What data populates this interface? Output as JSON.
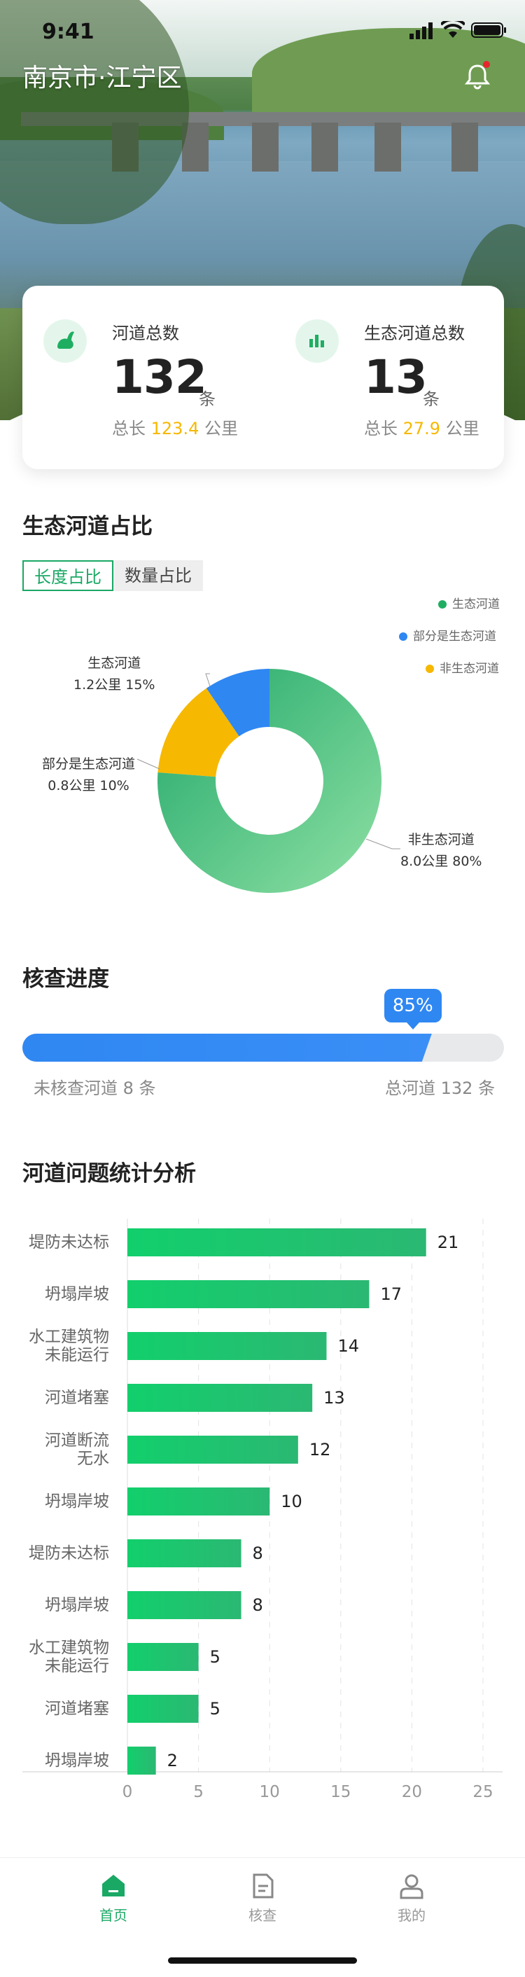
{
  "status_bar": {
    "time": "9:41"
  },
  "header": {
    "title": "南京市·江宁区"
  },
  "summary": {
    "total": {
      "label": "河道总数",
      "value": "132",
      "unit": "条",
      "sub_prefix": "总长",
      "sub_value": "123.4",
      "sub_unit": "公里"
    },
    "eco": {
      "label": "生态河道总数",
      "value": "13",
      "unit": "条",
      "sub_prefix": "总长",
      "sub_value": "27.9",
      "sub_unit": "公里"
    }
  },
  "ratio": {
    "title": "生态河道占比",
    "tabs": [
      "长度占比",
      "数量占比"
    ],
    "legend": [
      {
        "label": "生态河道",
        "color": "#1fae61"
      },
      {
        "label": "部分是生态河道",
        "color": "#2f87f2"
      },
      {
        "label": "非生态河道",
        "color": "#f6b800"
      }
    ],
    "donut_labels": [
      {
        "name": "生态河道",
        "value": "1.2公里  15%"
      },
      {
        "name": "部分是生态河道",
        "value": "0.8公里  10%"
      },
      {
        "name": "非生态河道",
        "value": "8.0公里 80%"
      }
    ]
  },
  "progress": {
    "title": "核查进度",
    "percent_label": "85%",
    "percent": 0.85,
    "left_text": "未核查河道 8 条",
    "right_text": "总河道 132 条"
  },
  "issues": {
    "title": "河道问题统计分析"
  },
  "chart_data": [
    {
      "type": "pie",
      "title": "",
      "categories": [
        "生态河道",
        "部分是生态河道",
        "非生态河道"
      ],
      "values": [
        15,
        10,
        80
      ],
      "labels": [
        "1.2公里  15%",
        "0.8公里  10%",
        "8.0公里 80%"
      ],
      "colors": [
        "#f6b800",
        "#2f87f2",
        "#1fae61"
      ]
    },
    {
      "type": "bar",
      "orientation": "horizontal",
      "title": "",
      "categories": [
        "堤防未达标",
        "坍塌岸坡",
        "水工建筑物\n未能运行",
        "河道堵塞",
        "河道断流\n无水",
        "坍塌岸坡",
        "堤防未达标",
        "坍塌岸坡",
        "水工建筑物\n未能运行",
        "河道堵塞",
        "坍塌岸坡"
      ],
      "values": [
        21,
        17,
        14,
        13,
        12,
        10,
        8,
        8,
        5,
        5,
        2
      ],
      "xlim": [
        0,
        25
      ],
      "xticks": [
        0,
        5,
        10,
        15,
        20,
        25
      ],
      "grid": true,
      "color": "#1fc46c"
    }
  ],
  "tabbar": {
    "items": [
      {
        "label": "首页",
        "icon": "home-icon",
        "active": true
      },
      {
        "label": "核查",
        "icon": "document-icon",
        "active": false
      },
      {
        "label": "我的",
        "icon": "user-icon",
        "active": false
      }
    ],
    "active_color": "#1aa865",
    "inactive_color": "#999999"
  }
}
